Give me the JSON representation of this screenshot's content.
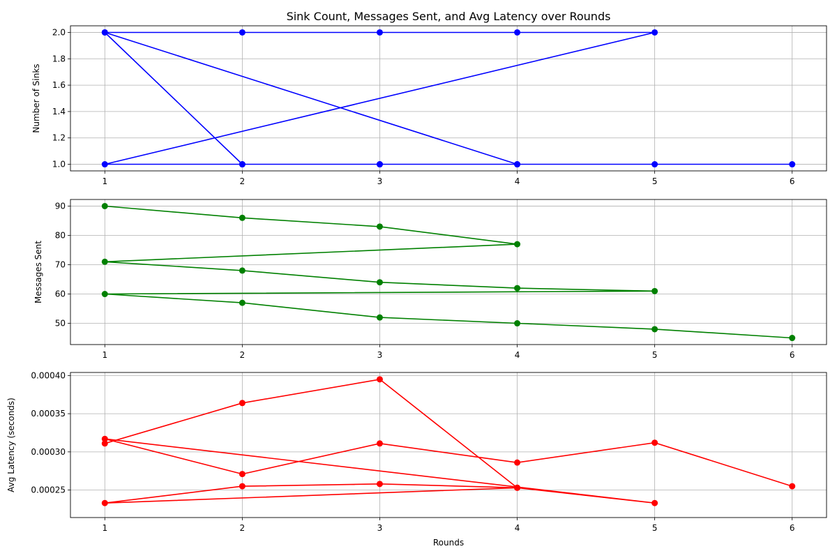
{
  "chart_data": [
    {
      "type": "line",
      "title": "Sink Count, Messages Sent, and Avg Latency over Rounds",
      "xlabel": "",
      "ylabel": "Number of Sinks",
      "xlim": [
        0.75,
        6.25
      ],
      "ylim": [
        0.95,
        2.05
      ],
      "xticks": [
        1,
        2,
        3,
        4,
        5,
        6
      ],
      "yticks": [
        1.0,
        1.2,
        1.4,
        1.6,
        1.8,
        2.0
      ],
      "ytick_decimals": 1,
      "grid": true,
      "color": "#0000ff",
      "x": [
        1,
        2,
        3,
        4,
        5,
        1,
        2,
        3,
        4,
        1,
        2,
        3,
        4,
        5,
        6
      ],
      "y": [
        2,
        2,
        2,
        2,
        2,
        1,
        1,
        1,
        1,
        2,
        1,
        1,
        1,
        1,
        1
      ]
    },
    {
      "type": "line",
      "title": "",
      "xlabel": "",
      "ylabel": "Messages Sent",
      "xlim": [
        0.75,
        6.25
      ],
      "ylim": [
        42.75,
        92.25
      ],
      "xticks": [
        1,
        2,
        3,
        4,
        5,
        6
      ],
      "yticks": [
        50,
        60,
        70,
        80,
        90
      ],
      "ytick_decimals": 0,
      "grid": true,
      "color": "#008000",
      "x": [
        1,
        2,
        3,
        4,
        1,
        2,
        3,
        4,
        5,
        1,
        2,
        3,
        4,
        5,
        6
      ],
      "y": [
        90,
        86,
        83,
        77,
        71,
        68,
        64,
        62,
        61,
        60,
        57,
        52,
        50,
        48,
        45
      ]
    },
    {
      "type": "line",
      "title": "",
      "xlabel": "Rounds",
      "ylabel": "Avg Latency (seconds)",
      "xlim": [
        0.75,
        6.25
      ],
      "ylim": [
        0.000214,
        0.000404
      ],
      "xticks": [
        1,
        2,
        3,
        4,
        5,
        6
      ],
      "yticks": [
        0.00025,
        0.0003,
        0.00035,
        0.0004
      ],
      "ytick_decimals": 5,
      "grid": true,
      "color": "#ff0000",
      "x": [
        1,
        2,
        3,
        4,
        1,
        2,
        3,
        4,
        5,
        1,
        2,
        3,
        4,
        5,
        6
      ],
      "y": [
        0.000311,
        0.000364,
        0.000395,
        0.000253,
        0.000233,
        0.000255,
        0.000258,
        0.000253,
        0.000233,
        0.000317,
        0.000271,
        0.000311,
        0.000286,
        0.000312,
        0.000255
      ]
    }
  ]
}
